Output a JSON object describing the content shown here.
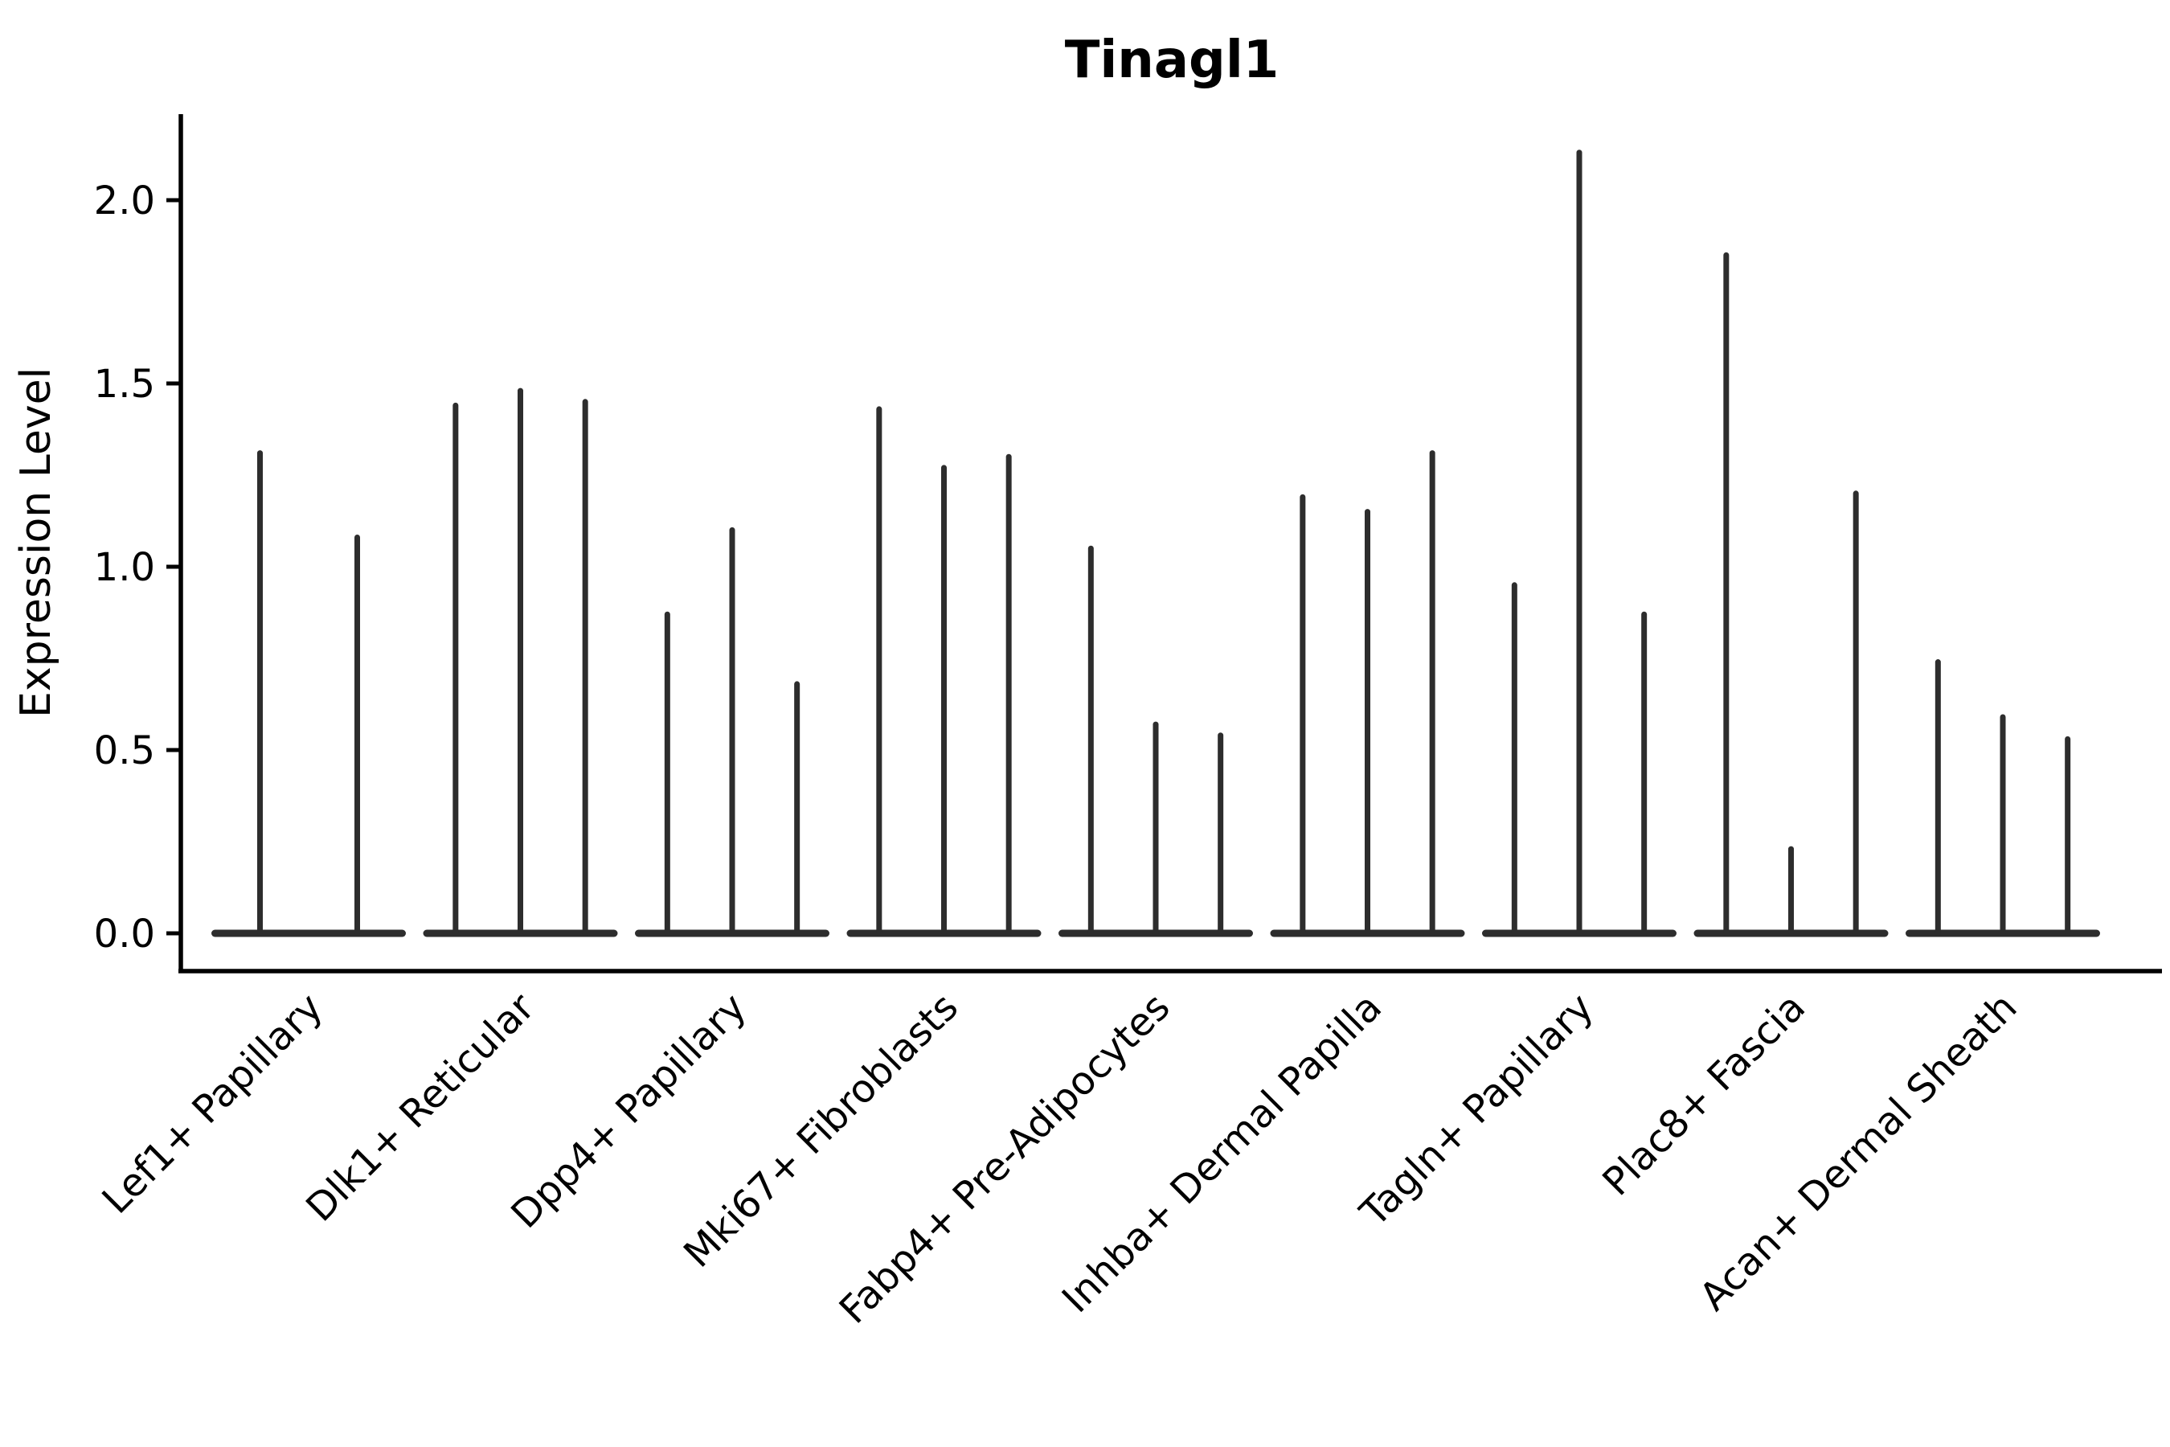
{
  "chart_data": {
    "type": "violin",
    "title": "Tinagl1",
    "xlabel": "",
    "ylabel": "Expression Level",
    "ylim": [
      0,
      2.23
    ],
    "yticks": [
      0.0,
      0.5,
      1.0,
      1.5,
      2.0
    ],
    "ytick_labels": [
      "0.0",
      "0.5",
      "1.0",
      "1.5",
      "2.0"
    ],
    "grid": false,
    "legend": "none",
    "x_tick_rotation": 45,
    "violin_style": "very thin spikes with flat dense base at 0",
    "colors": {
      "violin": "#2d2d2d",
      "axis": "#000000",
      "text": "#000000",
      "background": "#ffffff"
    },
    "categories": [
      "Lef1+ Papillary",
      "Dlk1+ Reticular",
      "Dpp4+ Papillary",
      "Mki67+ Fibroblasts",
      "Fabp4+ Pre-Adipocytes",
      "Inhba+ Dermal Papilla",
      "Tagln+ Papillary",
      "Plac8+ Fascia",
      "Acan+ Dermal Sheath"
    ],
    "groups": [
      {
        "category": "Lef1+ Papillary",
        "violin_maxima": [
          1.31,
          1.08
        ]
      },
      {
        "category": "Dlk1+ Reticular",
        "violin_maxima": [
          1.44,
          1.48,
          1.45
        ]
      },
      {
        "category": "Dpp4+ Papillary",
        "violin_maxima": [
          0.87,
          1.1,
          0.68
        ]
      },
      {
        "category": "Mki67+ Fibroblasts",
        "violin_maxima": [
          1.43,
          1.27,
          1.3
        ]
      },
      {
        "category": "Fabp4+ Pre-Adipocytes",
        "violin_maxima": [
          1.05,
          0.57,
          0.54
        ]
      },
      {
        "category": "Inhba+ Dermal Papilla",
        "violin_maxima": [
          1.19,
          1.15,
          1.31
        ]
      },
      {
        "category": "Tagln+ Papillary",
        "violin_maxima": [
          0.95,
          2.13,
          0.87
        ]
      },
      {
        "category": "Plac8+ Fascia",
        "violin_maxima": [
          1.85,
          0.23,
          1.2
        ]
      },
      {
        "category": "Acan+ Dermal Sheath",
        "violin_maxima": [
          0.74,
          0.59,
          0.53
        ]
      }
    ]
  }
}
